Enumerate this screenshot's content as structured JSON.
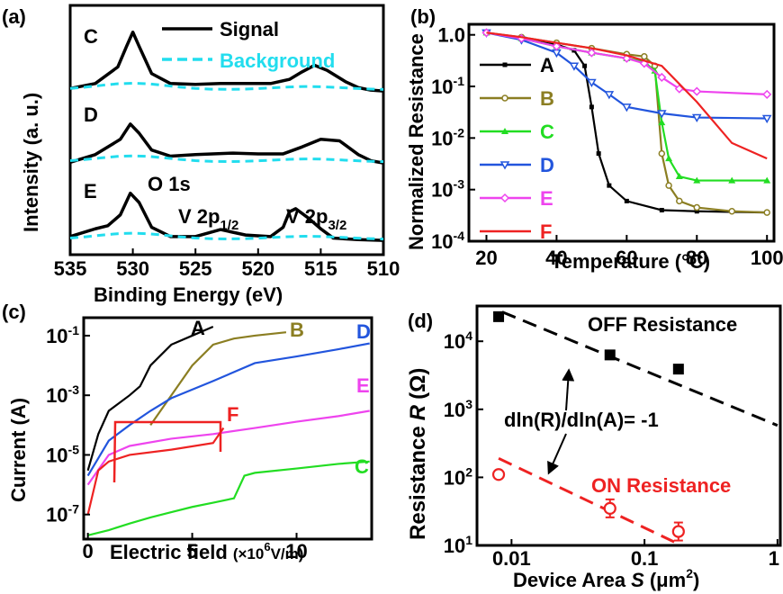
{
  "panel_labels": [
    "(a)",
    "(b)",
    "(c)",
    "(d)"
  ],
  "chart_data": [
    {
      "panel": "(a)",
      "type": "line",
      "xlabel": "Binding Energy (eV)",
      "ylabel": "Intensity (a. u.)",
      "xlim": [
        535,
        510
      ],
      "x_reversed": true,
      "xticks": [
        "535",
        "530",
        "525",
        "520",
        "515",
        "510"
      ],
      "legend": [
        {
          "name": "Signal",
          "color": "#000000",
          "dash": false
        },
        {
          "name": "Background",
          "color": "#22ddee",
          "dash": true
        }
      ],
      "curve_labels": [
        "C",
        "D",
        "E"
      ],
      "annotations": [
        {
          "text": "O 1s",
          "x": 529
        },
        {
          "text": "V 2p",
          "sub": "1/2",
          "x": 522.5
        },
        {
          "text": "V 2p",
          "sub": "3/2",
          "x": 514.5
        }
      ],
      "series": [
        {
          "name": "C",
          "x": [
            535,
            533,
            531.2,
            530.5,
            530,
            529.5,
            528.5,
            527,
            525,
            523,
            521,
            519,
            517.5,
            516.5,
            515.5,
            514.5,
            513,
            512,
            511,
            510
          ],
          "y": [
            0.04,
            0.1,
            0.3,
            0.55,
            0.72,
            0.55,
            0.22,
            0.1,
            0.09,
            0.1,
            0.1,
            0.1,
            0.15,
            0.24,
            0.32,
            0.26,
            0.12,
            0.05,
            0.02,
            0.01
          ]
        },
        {
          "name": "D",
          "x": [
            535,
            533,
            531,
            530.2,
            529.5,
            528.5,
            527,
            525,
            522,
            520,
            518,
            516.5,
            515,
            513.5,
            512,
            511,
            510
          ],
          "y": [
            0.02,
            0.12,
            0.32,
            0.52,
            0.4,
            0.18,
            0.1,
            0.12,
            0.14,
            0.13,
            0.13,
            0.22,
            0.32,
            0.3,
            0.12,
            0.04,
            0.01
          ]
        },
        {
          "name": "E",
          "x": [
            535,
            533,
            532,
            531,
            530.2,
            529.5,
            528.5,
            527,
            525,
            523,
            521,
            519,
            518,
            517.5,
            517,
            516,
            515,
            514,
            512,
            510
          ],
          "y": [
            0.06,
            0.16,
            0.2,
            0.34,
            0.62,
            0.5,
            0.18,
            0.06,
            0.06,
            0.15,
            0.08,
            0.06,
            0.18,
            0.38,
            0.42,
            0.3,
            0.16,
            0.04,
            0.02,
            0.01
          ]
        }
      ]
    },
    {
      "panel": "(b)",
      "type": "line",
      "xlabel": "Temperature (°C)",
      "ylabel": "Normalized Resistance",
      "xlim": [
        15,
        102
      ],
      "ylim": [
        0.0001,
        1.6
      ],
      "yscale": "log",
      "xticks": [
        20,
        40,
        60,
        80,
        100
      ],
      "yticks": [
        "10",
        "10",
        "10",
        "10",
        "10"
      ],
      "yticks_exp": [
        "0",
        "-1",
        "-2",
        "-3",
        "-4"
      ],
      "ytick_first": "1.0",
      "series": [
        {
          "name": "A",
          "color": "#000000",
          "marker": "square",
          "x": [
            20,
            30,
            40,
            45,
            48,
            50,
            52,
            55,
            60,
            70,
            80,
            100
          ],
          "y": [
            1.1,
            0.85,
            0.65,
            0.5,
            0.25,
            0.04,
            0.005,
            0.0012,
            0.0006,
            0.0004,
            0.00038,
            0.00036
          ]
        },
        {
          "name": "B",
          "color": "#8b7e22",
          "marker": "circle",
          "x": [
            20,
            30,
            40,
            50,
            60,
            65,
            68,
            70,
            72,
            75,
            80,
            90,
            100
          ],
          "y": [
            1.1,
            0.9,
            0.7,
            0.55,
            0.42,
            0.38,
            0.25,
            0.005,
            0.0012,
            0.0006,
            0.00045,
            0.00038,
            0.00036
          ]
        },
        {
          "name": "C",
          "color": "#22dd22",
          "marker": "triangle",
          "x": [
            20,
            30,
            40,
            50,
            60,
            65,
            68,
            70,
            72,
            75,
            80,
            90,
            100
          ],
          "y": [
            1.1,
            0.85,
            0.6,
            0.45,
            0.35,
            0.3,
            0.2,
            0.02,
            0.004,
            0.0018,
            0.0015,
            0.0015,
            0.0015
          ]
        },
        {
          "name": "D",
          "color": "#2255dd",
          "marker": "triangle-down",
          "x": [
            20,
            30,
            40,
            45,
            50,
            55,
            60,
            70,
            80,
            100
          ],
          "y": [
            1.1,
            0.8,
            0.45,
            0.25,
            0.12,
            0.07,
            0.04,
            0.03,
            0.025,
            0.024
          ]
        },
        {
          "name": "E",
          "color": "#ee44ee",
          "marker": "diamond",
          "x": [
            20,
            30,
            40,
            50,
            60,
            65,
            70,
            75,
            80,
            100
          ],
          "y": [
            1.1,
            0.85,
            0.6,
            0.45,
            0.35,
            0.28,
            0.15,
            0.09,
            0.08,
            0.07
          ]
        },
        {
          "name": "F",
          "color": "#ee2222",
          "marker": "none",
          "x": [
            20,
            30,
            40,
            50,
            60,
            70,
            80,
            90,
            100
          ],
          "y": [
            1.1,
            0.9,
            0.7,
            0.55,
            0.4,
            0.25,
            0.05,
            0.008,
            0.004
          ]
        }
      ]
    },
    {
      "panel": "(c)",
      "type": "line",
      "xlabel": "Electric field",
      "xlabel_unit_prefix": "(×10",
      "xlabel_unit_exp": "6",
      "xlabel_unit_suffix": "V/m)",
      "ylabel": "Current (A)",
      "xlim": [
        -0.2,
        13.6
      ],
      "ylim": [
        1.5e-08,
        0.4
      ],
      "yscale": "log",
      "xticks": [
        0,
        5,
        10
      ],
      "yticks": [
        "10",
        "10",
        "10",
        "10"
      ],
      "yticks_exp": [
        "-1",
        "-3",
        "-5",
        "-7"
      ],
      "series": [
        {
          "name": "A",
          "color": "#000000",
          "x": [
            0,
            0.5,
            1,
            2,
            2.5,
            3,
            4,
            5,
            6
          ],
          "y": [
            3e-06,
            5e-05,
            0.0003,
            0.001,
            0.002,
            0.01,
            0.05,
            0.1,
            0.2
          ]
        },
        {
          "name": "B",
          "color": "#8b7e22",
          "x": [
            3,
            4,
            5,
            6,
            7,
            8,
            9.5
          ],
          "y": [
            0.0001,
            0.001,
            0.01,
            0.05,
            0.08,
            0.1,
            0.13
          ]
        },
        {
          "name": "D",
          "color": "#2255dd",
          "x": [
            0,
            1,
            2,
            3,
            4,
            6,
            8,
            10,
            12,
            13.5
          ],
          "y": [
            2e-06,
            3e-05,
            0.0001,
            0.0003,
            0.0008,
            0.003,
            0.012,
            0.02,
            0.035,
            0.055
          ]
        },
        {
          "name": "E",
          "color": "#ee44ee",
          "x": [
            0,
            1,
            2,
            4,
            6,
            8,
            10,
            12,
            13.5
          ],
          "y": [
            1e-06,
            1e-05,
            2e-05,
            3.5e-05,
            5e-05,
            8e-05,
            0.00013,
            0.0002,
            0.0003
          ]
        },
        {
          "name": "F",
          "color": "#ee2222",
          "x": [
            0,
            0.5,
            1,
            2,
            4,
            6,
            6.5
          ],
          "y": [
            1e-07,
            3e-06,
            6e-06,
            1e-05,
            1.5e-05,
            2.5e-05,
            8e-05
          ]
        },
        {
          "name": "C",
          "color": "#22dd22",
          "x": [
            0,
            1,
            2,
            3,
            4,
            5,
            6,
            7,
            7.5,
            8,
            10,
            12,
            13.5
          ],
          "y": [
            2e-08,
            3e-08,
            5e-08,
            8e-08,
            1.2e-07,
            1.8e-07,
            2.5e-07,
            3.5e-07,
            2e-06,
            2.5e-06,
            3.5e-06,
            5e-06,
            6e-06
          ]
        }
      ]
    },
    {
      "panel": "(d)",
      "type": "scatter",
      "xlabel": "Device Area",
      "xlabel_var": "S",
      "xlabel_unit": "(μm",
      "xlabel_unit_exp": "2",
      "xlabel_unit_close": ")",
      "ylabel": "Resistance",
      "ylabel_var": "R",
      "ylabel_unit": "(Ω)",
      "xscale": "log",
      "yscale": "log",
      "xlim": [
        0.0055,
        1.05
      ],
      "ylim": [
        10,
        33000
      ],
      "xticks": [
        "0.01",
        "0.1",
        "1"
      ],
      "yticks": [
        "10",
        "10",
        "10",
        "10"
      ],
      "yticks_exp": [
        "4",
        "3",
        "2",
        "1"
      ],
      "annotation": "dln(R)/dln(A)= -1",
      "series": [
        {
          "name": "OFF Resistance",
          "color": "#000000",
          "marker": "square",
          "x": [
            0.008,
            0.055,
            0.18
          ],
          "y": [
            23000,
            6300,
            3900
          ],
          "fit": {
            "x": [
              0.0085,
              1.0
            ],
            "y": [
              27000,
              580
            ]
          }
        },
        {
          "name": "ON Resistance",
          "color": "#ee2222",
          "marker": "circle-open",
          "x": [
            0.008,
            0.055,
            0.18
          ],
          "y": [
            110,
            35,
            16
          ],
          "fit": {
            "x": [
              0.008,
              0.18
            ],
            "y": [
              190,
              10.5
            ]
          }
        }
      ]
    }
  ]
}
